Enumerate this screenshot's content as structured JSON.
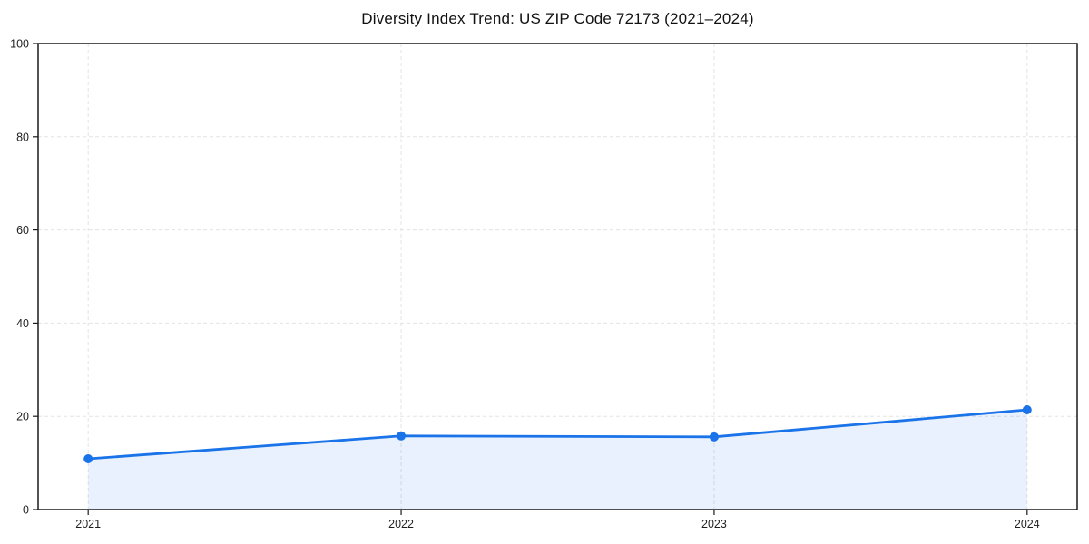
{
  "chart_data": {
    "type": "line",
    "title": "Diversity Index Trend: US ZIP Code 72173 (2021–2024)",
    "x": [
      2021,
      2022,
      2023,
      2024
    ],
    "series": [
      {
        "name": "Diversity Index",
        "values": [
          10.9,
          15.8,
          15.6,
          21.4
        ]
      }
    ],
    "xlabel": "",
    "ylabel": "",
    "xtick_labels": [
      "2021",
      "2022",
      "2023",
      "2024"
    ],
    "yticks": [
      0,
      20,
      40,
      60,
      80,
      100
    ],
    "xlim": [
      2020.84,
      2024.16
    ],
    "ylim": [
      0,
      100
    ],
    "grid": true,
    "grid_style": "dashed",
    "legend": "none",
    "area_fill_under_line": true,
    "colors": {
      "line": "#1a73e8",
      "marker": "#1a73e8",
      "area_fill": "rgba(26,115,232,0.10)",
      "grid": "#e3e3e3",
      "spine": "#1a1a1a",
      "tick_label": "#1f1f1f",
      "title": "#111111",
      "background": "#ffffff"
    }
  }
}
